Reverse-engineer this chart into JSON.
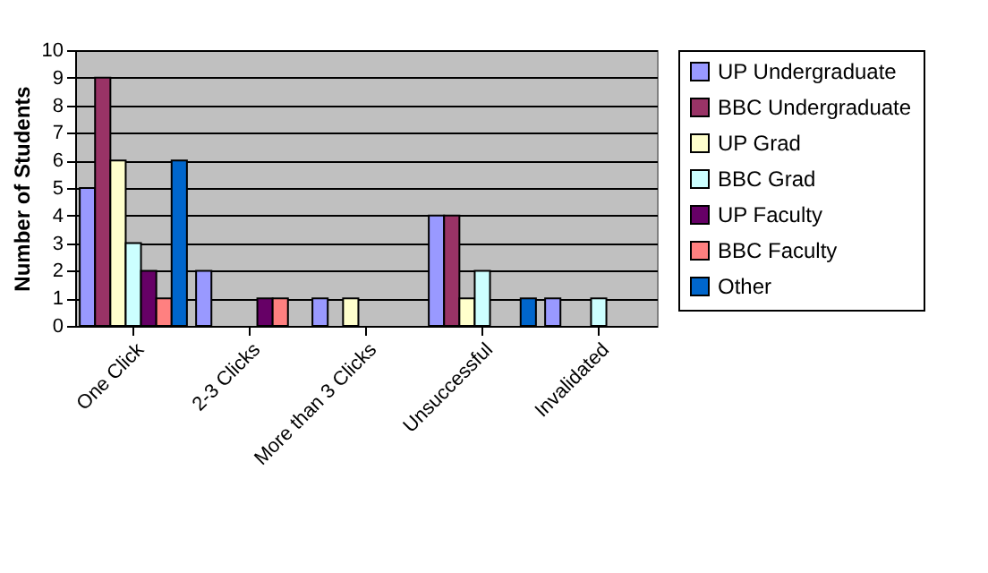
{
  "chart_data": {
    "type": "bar",
    "ylabel": "Number of Students",
    "categories": [
      "One Click",
      "2-3 Clicks",
      "More than 3 Clicks",
      "Unsuccessful",
      "Invalidated"
    ],
    "series": [
      {
        "name": "UP Undergraduate",
        "color": "#9999ff",
        "values": [
          5,
          2,
          1,
          4,
          1
        ]
      },
      {
        "name": "BBC Undergraduate",
        "color": "#993366",
        "values": [
          9,
          0,
          0,
          4,
          0
        ]
      },
      {
        "name": "UP Grad",
        "color": "#ffffcc",
        "values": [
          6,
          0,
          1,
          1,
          0
        ]
      },
      {
        "name": "BBC Grad",
        "color": "#ccffff",
        "values": [
          3,
          0,
          0,
          2,
          1
        ]
      },
      {
        "name": "UP Faculty",
        "color": "#660066",
        "values": [
          2,
          1,
          0,
          0,
          0
        ]
      },
      {
        "name": "BBC Faculty",
        "color": "#ff8080",
        "values": [
          1,
          1,
          0,
          0,
          0
        ]
      },
      {
        "name": "Other",
        "color": "#0066cc",
        "values": [
          6,
          0,
          0,
          1,
          0
        ]
      }
    ],
    "ylim": [
      0,
      10
    ],
    "yticks": [
      0,
      1,
      2,
      3,
      4,
      5,
      6,
      7,
      8,
      9,
      10
    ],
    "grid": "y",
    "legend": "right"
  }
}
